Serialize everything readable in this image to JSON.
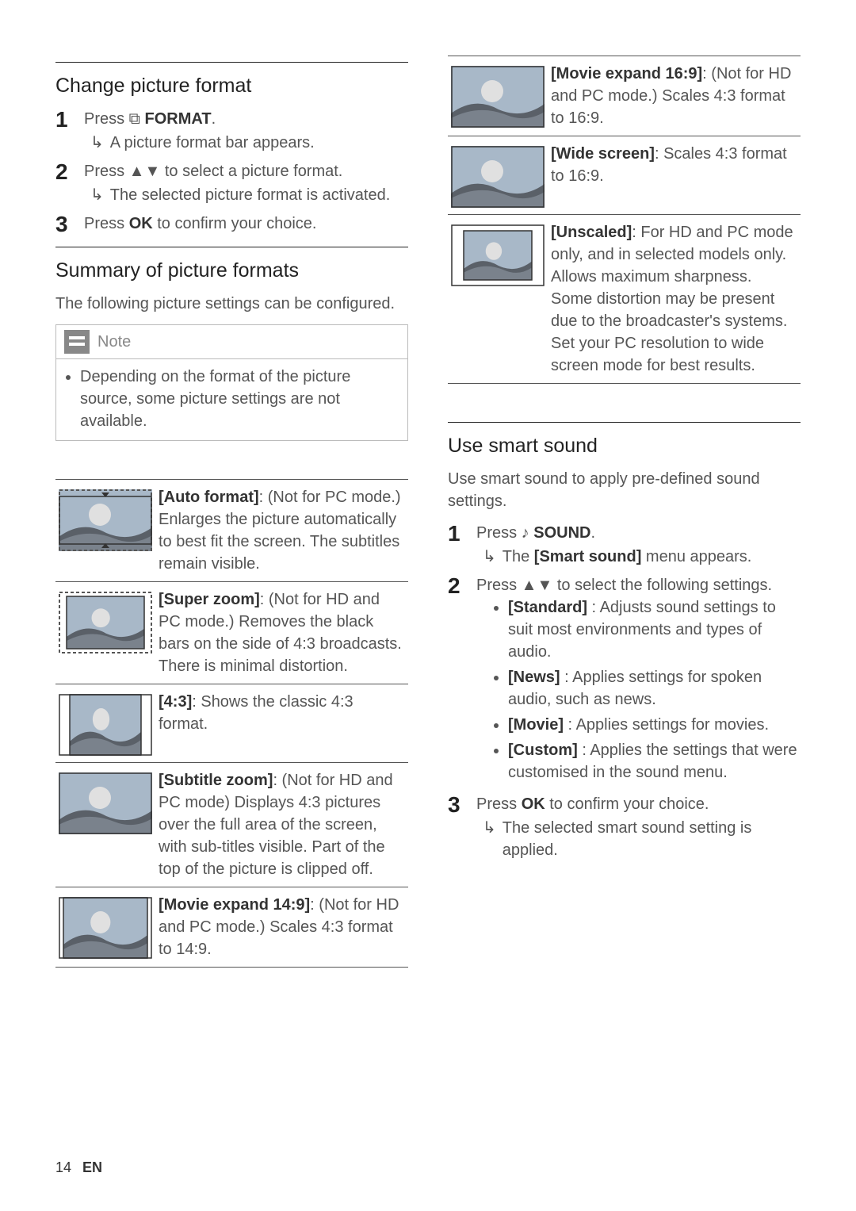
{
  "left": {
    "changeFormat": {
      "heading": "Change picture format",
      "steps": [
        {
          "num": "1",
          "line": "Press ⧉ ",
          "bold": "FORMAT",
          "after": ".",
          "sub": "A picture format bar appears."
        },
        {
          "num": "2",
          "line": "Press ▲▼ to select a picture format.",
          "sub": "The selected picture format is activated."
        },
        {
          "num": "3",
          "line_pre": "Press ",
          "bold": "OK",
          "line_post": " to confirm your choice."
        }
      ]
    },
    "summary": {
      "heading": "Summary of picture formats",
      "para": "The following picture settings can be configured.",
      "note_title": "Note",
      "note_body": "Depending on the format of the picture source, some picture settings are not available."
    },
    "formats_left": [
      {
        "svg": "autoformat",
        "bold": "[Auto format]",
        "text": ": (Not for PC mode.) Enlarges the picture automatically to best fit the screen. The subtitles remain visible."
      },
      {
        "svg": "superzoom",
        "bold": "[Super zoom]",
        "text": ": (Not for HD and PC mode.) Removes the black bars on the side of 4:3 broadcasts. There is minimal distortion."
      },
      {
        "svg": "fourthree",
        "bold": "[4:3]",
        "text": ": Shows the classic 4:3 format."
      },
      {
        "svg": "subtitle",
        "bold": "[Subtitle zoom]",
        "text": ": (Not for HD and PC mode) Displays 4:3 pictures over the full area of the screen, with sub-titles visible. Part of the top of the picture is clipped off."
      },
      {
        "svg": "expand149",
        "bold": "[Movie expand 14:9]",
        "text": ": (Not for HD and PC mode.) Scales 4:3 format to 14:9."
      }
    ]
  },
  "right": {
    "formats_right": [
      {
        "svg": "expand169",
        "bold": "[Movie expand 16:9]",
        "text": ": (Not for HD and PC mode.) Scales 4:3 format to 16:9."
      },
      {
        "svg": "widescreen",
        "bold": "[Wide screen]",
        "text": ": Scales 4:3 format to 16:9."
      },
      {
        "svg": "unscaled",
        "bold": "[Unscaled]",
        "text": ": For HD and PC mode only, and in selected models only. Allows maximum sharpness. Some distortion may be present due to the broadcaster's systems. Set your PC resolution to wide screen mode for best results."
      }
    ],
    "smartSound": {
      "heading": "Use smart sound",
      "para": "Use smart sound to apply pre-defined sound settings.",
      "step1_pre": "Press ♪ ",
      "step1_bold": "SOUND",
      "step1_post": ".",
      "step1_sub_pre": "The ",
      "step1_sub_bold": "[Smart sound]",
      "step1_sub_post": " menu appears.",
      "step2": "Press ▲▼ to select the following settings.",
      "bullets": [
        {
          "bold": "[Standard]",
          "text": " : Adjusts sound settings to suit most environments and types of audio."
        },
        {
          "bold": "[News]",
          "text": " : Applies settings for spoken audio, such as news."
        },
        {
          "bold": "[Movie]",
          "text": " : Applies settings for movies."
        },
        {
          "bold": "[Custom]",
          "text": " : Applies the settings that were customised in the sound menu."
        }
      ],
      "step3_pre": "Press ",
      "step3_bold": "OK",
      "step3_post": " to confirm your choice.",
      "step3_sub": "The selected smart sound setting is applied."
    }
  },
  "footer": {
    "page": "14",
    "lang": "EN"
  },
  "colors": {
    "sky": "#a8b8c8",
    "ground": "#5a6068",
    "ground2": "#7a828c",
    "sun": "#d8d8d8",
    "frame": "#555555",
    "dashstroke": "#555555"
  }
}
